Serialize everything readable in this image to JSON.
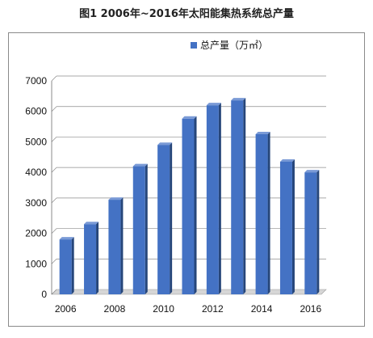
{
  "page": {
    "title": "图1  2006年~2016年太阳能集热系统总产量"
  },
  "chart_data": {
    "type": "bar",
    "title": "",
    "xlabel": "",
    "ylabel": "",
    "categories": [
      "2006",
      "2007",
      "2008",
      "2009",
      "2010",
      "2011",
      "2012",
      "2013",
      "2014",
      "2015",
      "2016"
    ],
    "x_tick_labels": [
      "2006",
      "2008",
      "2010",
      "2012",
      "2014",
      "2016"
    ],
    "series": [
      {
        "name": "总产量（万㎡）",
        "color": "#4472c4",
        "values": [
          1800,
          2300,
          3100,
          4200,
          4900,
          5760,
          6200,
          6360,
          5250,
          4350,
          4000
        ]
      }
    ],
    "ylim": [
      0,
      7000
    ],
    "yticks": [
      0,
      1000,
      2000,
      3000,
      4000,
      5000,
      6000,
      7000
    ],
    "grid": true,
    "legend_position": "top",
    "style": "3d-bar"
  }
}
